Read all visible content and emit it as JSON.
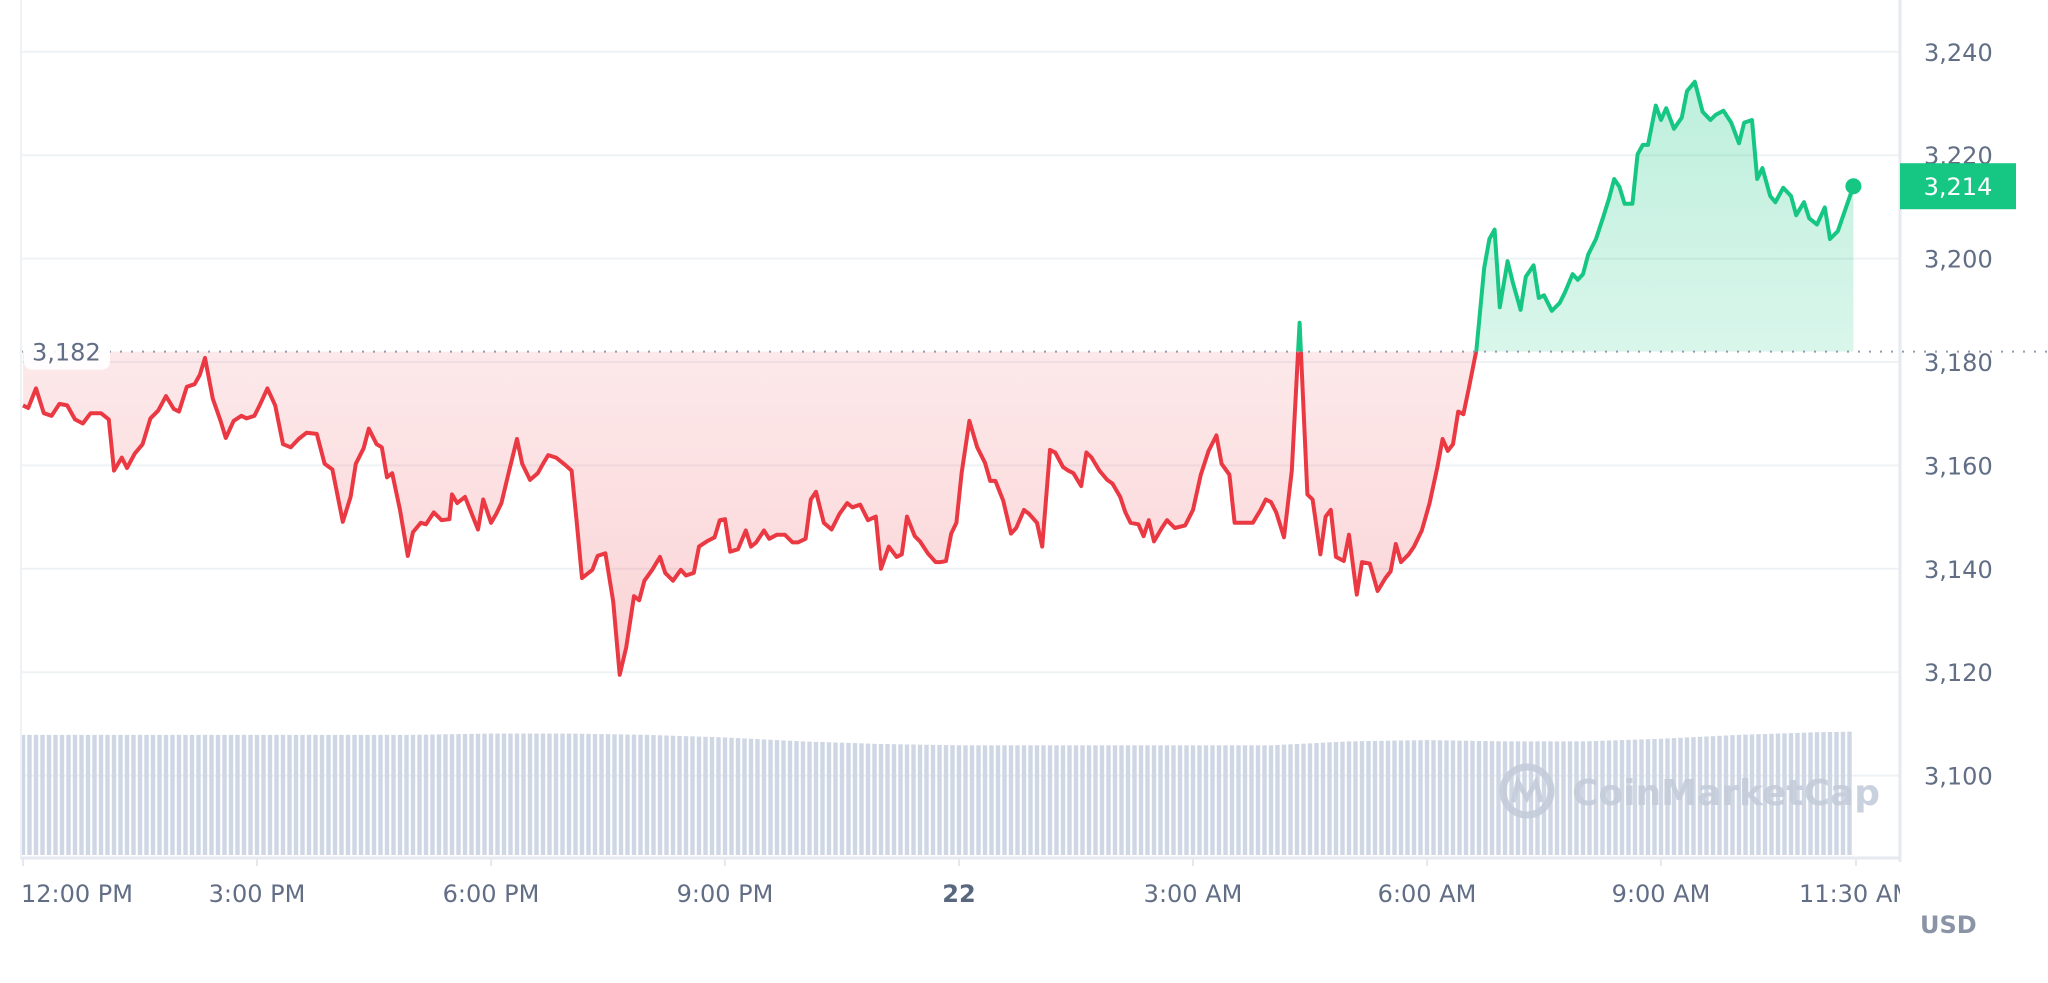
{
  "chart_data": {
    "type": "line",
    "title": "",
    "xlabel": "",
    "ylabel": "",
    "unit_label": "USD",
    "ylim": [
      3085,
      3250
    ],
    "y_ticks": [
      "3,240",
      "3,220",
      "3,200",
      "3,180",
      "3,160",
      "3,140",
      "3,120",
      "3,100"
    ],
    "y_tick_values": [
      3240,
      3220,
      3200,
      3180,
      3160,
      3140,
      3120,
      3100
    ],
    "x_ticks": [
      {
        "label": "12:00 PM",
        "time": "12:00",
        "bold": false
      },
      {
        "label": "3:00 PM",
        "time": "15:00",
        "bold": false
      },
      {
        "label": "6:00 PM",
        "time": "18:00",
        "bold": false
      },
      {
        "label": "9:00 PM",
        "time": "21:00",
        "bold": false
      },
      {
        "label": "22",
        "time": "00:00",
        "bold": true
      },
      {
        "label": "3:00 AM",
        "time": "03:00",
        "bold": false
      },
      {
        "label": "6:00 AM",
        "time": "06:00",
        "bold": false
      },
      {
        "label": "9:00 AM",
        "time": "09:00",
        "bold": false
      },
      {
        "label": "11:30 AM",
        "time": "11:30",
        "bold": false
      }
    ],
    "grid": true,
    "baseline": {
      "value": 3182,
      "label": "3,182"
    },
    "current": {
      "value": 3214,
      "label": "3,214"
    },
    "colors": {
      "up": "#16c784",
      "down": "#ea3943",
      "volume": "#cfd6e4",
      "grid": "#eff2f5"
    },
    "watermark": "CoinMarketCap",
    "time": [
      "12:00",
      "12:04",
      "12:10",
      "12:16",
      "12:22",
      "12:28",
      "12:34",
      "12:40",
      "12:46",
      "12:52",
      "13:00",
      "13:06",
      "13:10",
      "13:16",
      "13:20",
      "13:26",
      "13:32",
      "13:38",
      "13:44",
      "13:50",
      "13:56",
      "14:00",
      "14:06",
      "14:12",
      "14:16",
      "14:20",
      "14:26",
      "14:32",
      "14:36",
      "14:42",
      "14:48",
      "14:52",
      "14:58",
      "15:02",
      "15:08",
      "15:14",
      "15:20",
      "15:26",
      "15:32",
      "15:38",
      "15:46",
      "15:52",
      "15:58",
      "16:06",
      "16:12",
      "16:16",
      "16:22",
      "16:26",
      "16:32",
      "16:36",
      "16:40",
      "16:44",
      "16:50",
      "16:56",
      "17:00",
      "17:06",
      "17:10",
      "17:16",
      "17:22",
      "17:28",
      "17:30",
      "17:34",
      "17:40",
      "17:44",
      "17:50",
      "17:54",
      "18:00",
      "18:04",
      "18:08",
      "18:14",
      "18:20",
      "18:24",
      "18:30",
      "18:36",
      "18:40",
      "18:44",
      "18:50",
      "18:56",
      "19:02",
      "19:06",
      "19:10",
      "19:18",
      "19:22",
      "19:28",
      "19:34",
      "19:39",
      "19:44",
      "19:50",
      "19:54",
      "19:58",
      "20:04",
      "20:10",
      "20:14",
      "20:20",
      "20:26",
      "20:30",
      "20:36",
      "20:40",
      "20:46",
      "20:52",
      "20:56",
      "21:00",
      "21:04",
      "21:10",
      "21:16",
      "21:20",
      "21:24",
      "21:30",
      "21:34",
      "21:40",
      "21:46",
      "21:52",
      "21:56",
      "22:02",
      "22:06",
      "22:10",
      "22:16",
      "22:22",
      "22:28",
      "22:34",
      "22:38",
      "22:44",
      "22:50",
      "22:56",
      "23:00",
      "23:06",
      "23:12",
      "23:16",
      "23:20",
      "23:26",
      "23:30",
      "23:36",
      "23:42",
      "23:46",
      "23:50",
      "23:54",
      "23:58",
      "00:02",
      "00:08",
      "00:14",
      "00:20",
      "00:24",
      "00:28",
      "00:34",
      "00:40",
      "00:44",
      "00:50",
      "00:54",
      "01:00",
      "01:04",
      "01:10",
      "01:14",
      "01:20",
      "01:24",
      "01:28",
      "01:34",
      "01:38",
      "01:42",
      "01:48",
      "01:54",
      "01:58",
      "02:04",
      "02:08",
      "02:12",
      "02:18",
      "02:22",
      "02:26",
      "02:30",
      "02:36",
      "02:40",
      "02:46",
      "02:54",
      "03:00",
      "03:06",
      "03:12",
      "03:18",
      "03:22",
      "03:28",
      "03:32",
      "03:40",
      "03:46",
      "03:52",
      "03:56",
      "04:00",
      "04:04",
      "04:10",
      "04:16",
      "04:22",
      "04:28",
      "04:32",
      "04:38",
      "04:42",
      "04:46",
      "04:50",
      "04:56",
      "05:00",
      "05:06",
      "05:10",
      "05:16",
      "05:22",
      "05:28",
      "05:32",
      "05:36",
      "05:40",
      "05:46",
      "05:50",
      "05:56",
      "06:02",
      "06:08",
      "06:12",
      "06:16",
      "06:20",
      "06:24",
      "06:28",
      "06:32",
      "06:38",
      "06:44",
      "06:48",
      "06:52",
      "06:56",
      "07:02",
      "07:06",
      "07:12",
      "07:16",
      "07:22",
      "07:26",
      "07:30",
      "07:36",
      "07:42",
      "07:46",
      "07:52",
      "07:56",
      "08:00",
      "08:04",
      "08:10",
      "08:16",
      "08:20",
      "08:24",
      "08:28",
      "08:32",
      "08:38",
      "08:42",
      "08:46",
      "08:50",
      "08:56",
      "09:00",
      "09:04",
      "09:10",
      "09:16",
      "09:20",
      "09:26",
      "09:32",
      "09:38",
      "09:42",
      "09:48",
      "09:54",
      "10:00",
      "10:04",
      "10:10",
      "10:14",
      "10:18",
      "10:24",
      "10:28",
      "10:34",
      "10:40",
      "10:44",
      "10:50",
      "10:54",
      "11:00",
      "11:06",
      "11:10",
      "11:16",
      "11:28"
    ],
    "price": [
      3171.6,
      3171.1,
      3174.9,
      3170.1,
      3169.6,
      3171.9,
      3171.6,
      3168.9,
      3168.1,
      3170.1,
      3170.1,
      3168.9,
      3159.0,
      3161.5,
      3159.5,
      3162.3,
      3164.1,
      3169.1,
      3170.6,
      3173.4,
      3170.9,
      3170.4,
      3175.2,
      3175.7,
      3177.5,
      3180.8,
      3172.9,
      3168.6,
      3165.3,
      3168.6,
      3169.6,
      3169.1,
      3169.6,
      3171.6,
      3174.9,
      3171.6,
      3164.1,
      3163.5,
      3165.1,
      3166.3,
      3166.1,
      3160.3,
      3159.2,
      3149.1,
      3153.9,
      3160.3,
      3163.3,
      3167.1,
      3164.1,
      3163.5,
      3157.7,
      3158.5,
      3151.4,
      3142.5,
      3147.1,
      3148.9,
      3148.6,
      3150.9,
      3149.4,
      3149.6,
      3154.4,
      3152.7,
      3153.9,
      3151.4,
      3147.6,
      3153.4,
      3148.9,
      3150.6,
      3152.7,
      3159.0,
      3165.1,
      3160.3,
      3157.2,
      3158.5,
      3160.3,
      3162.0,
      3161.5,
      3160.3,
      3159.0,
      3148.9,
      3138.2,
      3139.8,
      3142.5,
      3143.0,
      3133.7,
      3119.5,
      3124.8,
      3134.7,
      3133.9,
      3137.7,
      3139.8,
      3142.3,
      3139.2,
      3137.7,
      3139.8,
      3138.7,
      3139.2,
      3144.3,
      3145.3,
      3146.1,
      3149.4,
      3149.6,
      3143.3,
      3143.8,
      3147.4,
      3144.3,
      3145.1,
      3147.4,
      3145.8,
      3146.6,
      3146.6,
      3145.1,
      3145.1,
      3145.8,
      3153.4,
      3154.9,
      3148.9,
      3147.6,
      3150.6,
      3152.7,
      3151.9,
      3152.4,
      3149.4,
      3150.1,
      3140.0,
      3144.3,
      3142.3,
      3142.8,
      3150.1,
      3146.3,
      3145.3,
      3143.0,
      3141.3,
      3141.3,
      3141.5,
      3146.8,
      3148.9,
      3158.5,
      3168.6,
      3163.5,
      3160.5,
      3157.0,
      3157.0,
      3153.2,
      3146.8,
      3147.9,
      3151.4,
      3150.6,
      3148.9,
      3144.3,
      3163.0,
      3162.5,
      3159.7,
      3159.0,
      3158.5,
      3156.0,
      3162.5,
      3161.5,
      3159.0,
      3157.2,
      3156.5,
      3153.9,
      3150.9,
      3148.9,
      3148.6,
      3146.3,
      3149.4,
      3145.3,
      3147.9,
      3149.4,
      3147.9,
      3148.4,
      3151.4,
      3158.2,
      3162.8,
      3165.8,
      3160.3,
      3158.2,
      3148.9,
      3148.9,
      3148.9,
      3151.4,
      3153.4,
      3152.9,
      3150.9,
      3146.1,
      3159.0,
      3187.6,
      3154.4,
      3153.4,
      3142.8,
      3150.1,
      3151.4,
      3142.3,
      3141.5,
      3146.6,
      3135.0,
      3141.3,
      3141.0,
      3135.7,
      3138.2,
      3139.5,
      3144.8,
      3141.3,
      3142.8,
      3144.3,
      3147.4,
      3152.7,
      3159.7,
      3165.1,
      3162.8,
      3164.1,
      3170.4,
      3169.9,
      3174.7,
      3182.3,
      3198.2,
      3203.8,
      3205.6,
      3190.6,
      3199.5,
      3195.4,
      3190.1,
      3196.5,
      3198.7,
      3192.4,
      3192.9,
      3189.9,
      3191.4,
      3193.4,
      3197.0,
      3195.9,
      3197.0,
      3200.8,
      3203.8,
      3208.4,
      3211.6,
      3215.4,
      3213.9,
      3210.6,
      3210.6,
      3220.2,
      3222.0,
      3222.0,
      3229.6,
      3226.8,
      3229.1,
      3225.1,
      3227.3,
      3232.4,
      3234.2,
      3228.4,
      3226.8,
      3227.8,
      3228.6,
      3226.3,
      3222.3,
      3226.3,
      3226.8,
      3215.4,
      3217.5,
      3212.1,
      3210.9,
      3213.7,
      3212.1,
      3208.4,
      3210.9,
      3207.8,
      3206.6,
      3209.9,
      3203.8,
      3205.3,
      3214.0
    ],
    "volume_relative_hourly": [
      92,
      92,
      92,
      92,
      92,
      92,
      93,
      93,
      92,
      90,
      87,
      85,
      84,
      84,
      84,
      84,
      84,
      87,
      88,
      87,
      87,
      89,
      92,
      94,
      95
    ]
  }
}
